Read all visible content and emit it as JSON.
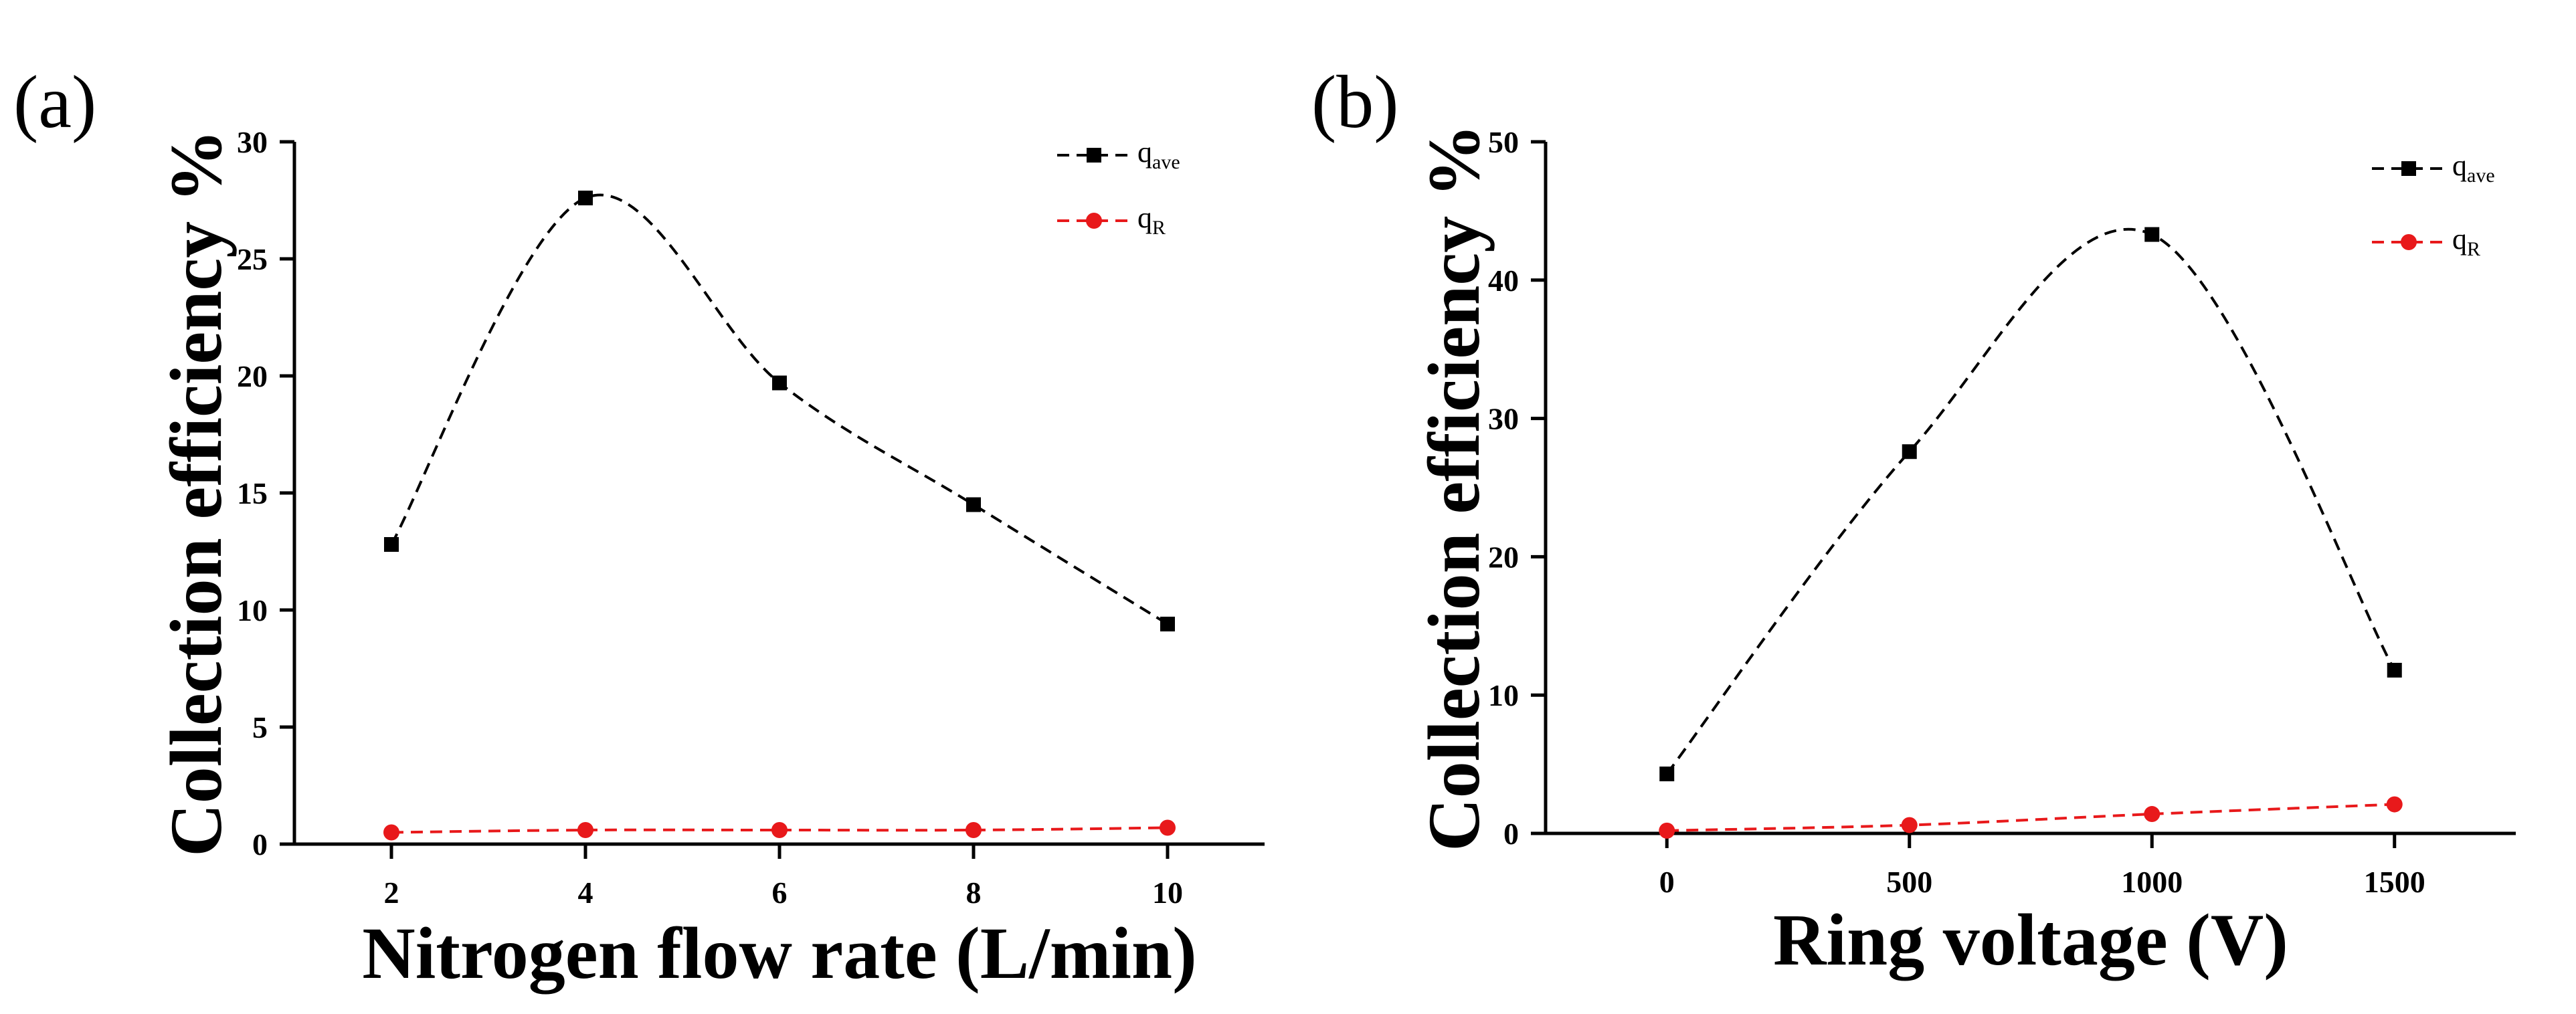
{
  "chart_data": [
    {
      "type": "line",
      "panel_label": "(a)",
      "xlabel": "Nitrogen flow rate (L/min)",
      "ylabel": "Collection efficiency %",
      "xlim": [
        1,
        11
      ],
      "ylim": [
        0,
        30
      ],
      "xticks": [
        2,
        4,
        6,
        8,
        10
      ],
      "yticks": [
        0,
        5,
        10,
        15,
        20,
        25,
        30
      ],
      "series": [
        {
          "name": "q_ave",
          "label_main": "q",
          "label_sub": "ave",
          "color": "#000000",
          "marker": "square",
          "line": "dashed",
          "x": [
            2,
            4,
            6,
            8,
            10
          ],
          "y": [
            12.8,
            27.6,
            19.7,
            14.5,
            9.4
          ]
        },
        {
          "name": "q_R",
          "label_main": "q",
          "label_sub": "R",
          "color": "#e8191b",
          "marker": "circle",
          "line": "dashed",
          "x": [
            2,
            4,
            6,
            8,
            10
          ],
          "y": [
            0.5,
            0.6,
            0.6,
            0.6,
            0.7
          ]
        }
      ]
    },
    {
      "type": "line",
      "panel_label": "(b)",
      "xlabel": "Ring voltage (V)",
      "ylabel": "Collection efficiency %",
      "xlim": [
        -250,
        1750
      ],
      "ylim": [
        0,
        50
      ],
      "xticks": [
        0,
        500,
        1000,
        1500
      ],
      "yticks": [
        0,
        10,
        20,
        30,
        40,
        50
      ],
      "series": [
        {
          "name": "q_ave",
          "label_main": "q",
          "label_sub": "ave",
          "color": "#000000",
          "marker": "square",
          "line": "dashed",
          "x": [
            0,
            500,
            1000,
            1500
          ],
          "y": [
            4.3,
            27.6,
            43.3,
            11.8
          ]
        },
        {
          "name": "q_R",
          "label_main": "q",
          "label_sub": "R",
          "color": "#e8191b",
          "marker": "circle",
          "line": "dashed",
          "x": [
            0,
            500,
            1000,
            1500
          ],
          "y": [
            0.2,
            0.6,
            1.4,
            2.1
          ]
        }
      ]
    }
  ]
}
